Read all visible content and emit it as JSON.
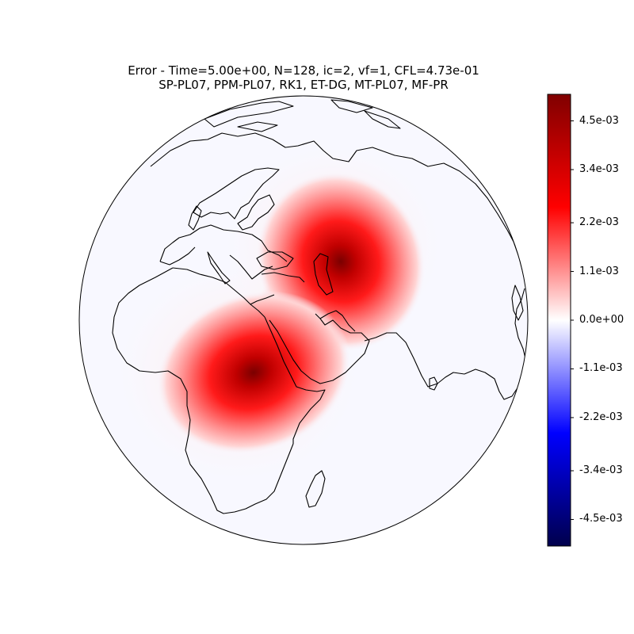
{
  "title": {
    "line1": "Error - Time=5.00e+00, N=128, ic=2, vf=1, CFL=4.73e-01",
    "line2": "SP-PL07, PPM-PL07, RK1, ET-DG, MT-PL07, MF-PR"
  },
  "colorbar": {
    "colormap": "seismic",
    "vmin": -0.0051,
    "vmax": 0.0051,
    "ticks": [
      {
        "label": "4.5e-03",
        "value": 0.0045
      },
      {
        "label": "3.4e-03",
        "value": 0.0034
      },
      {
        "label": "2.2e-03",
        "value": 0.0022
      },
      {
        "label": "1.1e-03",
        "value": 0.0011
      },
      {
        "label": "0.0e+00",
        "value": 0.0
      },
      {
        "label": "-1.1e-03",
        "value": -0.0011
      },
      {
        "label": "-2.2e-03",
        "value": -0.0022
      },
      {
        "label": "-3.4e-03",
        "value": -0.0034
      },
      {
        "label": "-4.5e-03",
        "value": -0.0045
      }
    ],
    "colors": {
      "low": "#00004c",
      "mid": "#ffffff",
      "high": "#800000"
    }
  },
  "map": {
    "projection": "orthographic",
    "background_color": "#f8f8ff",
    "coastline_color": "#000000",
    "error_blobs": [
      {
        "name": "caspian-maximum",
        "peak": 0.0051
      },
      {
        "name": "east-africa-maximum",
        "peak": 0.0049
      }
    ]
  }
}
